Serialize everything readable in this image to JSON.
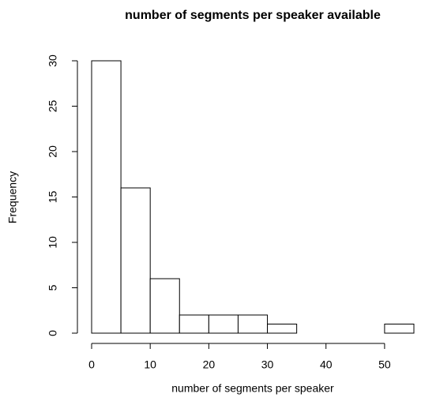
{
  "chart_data": {
    "type": "histogram",
    "title": "number of segments per speaker available",
    "x_label": "number of segments per speaker",
    "y_label": "Frequency",
    "bins": [
      0,
      5,
      10,
      15,
      20,
      25,
      30,
      35,
      40,
      45,
      50,
      55
    ],
    "values": [
      30,
      16,
      6,
      2,
      2,
      2,
      1,
      0,
      0,
      0,
      1
    ],
    "color": "#ffffff",
    "edge_color": "#000000",
    "xlim": [
      0,
      55
    ],
    "ylim": [
      0,
      30
    ],
    "xticks": [
      0,
      10,
      20,
      30,
      40,
      50
    ],
    "yticks": [
      0,
      5,
      10,
      15,
      20,
      25,
      30
    ],
    "grid": false
  }
}
